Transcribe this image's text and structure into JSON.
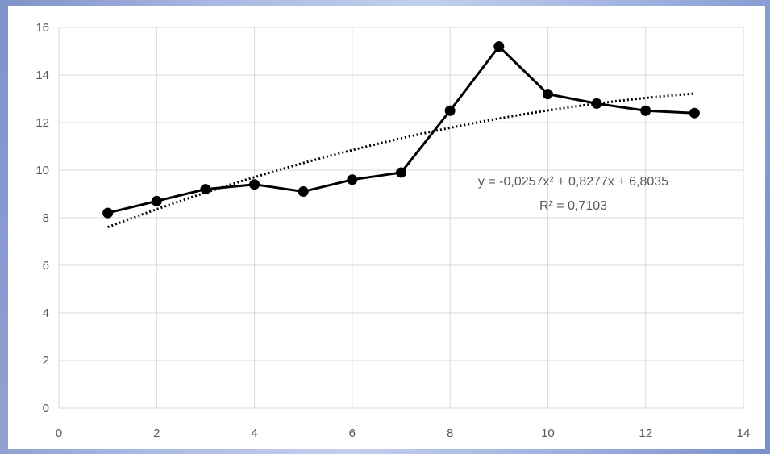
{
  "chart_data": {
    "type": "scatter",
    "x": [
      1,
      2,
      3,
      4,
      5,
      6,
      7,
      8,
      9,
      10,
      11,
      12,
      13
    ],
    "series": [
      {
        "values": [
          8.2,
          8.7,
          9.2,
          9.4,
          9.1,
          9.6,
          9.9,
          12.5,
          15.2,
          13.2,
          12.8,
          12.5,
          12.4
        ],
        "color": "#000000",
        "marker": "circle",
        "line": "solid"
      }
    ],
    "trendline": {
      "kind": "polynomial-2",
      "coefficients": [
        -0.0257,
        0.8277,
        6.8035
      ],
      "x_range": [
        1,
        13
      ],
      "style": "dotted",
      "color": "#000000",
      "equation": "y = -0,0257x² + 0,8277x + 6,8035",
      "r_squared": "R² = 0,7103"
    },
    "xlim": [
      0,
      14
    ],
    "ylim": [
      0,
      16
    ],
    "xticks": [
      "0",
      "2",
      "4",
      "6",
      "8",
      "10",
      "12",
      "14"
    ],
    "yticks": [
      "0",
      "2",
      "4",
      "6",
      "8",
      "10",
      "12",
      "14",
      "16"
    ],
    "grid": true,
    "gridColor": "#d9d9d9",
    "title": "",
    "xlabel": "",
    "ylabel": ""
  }
}
